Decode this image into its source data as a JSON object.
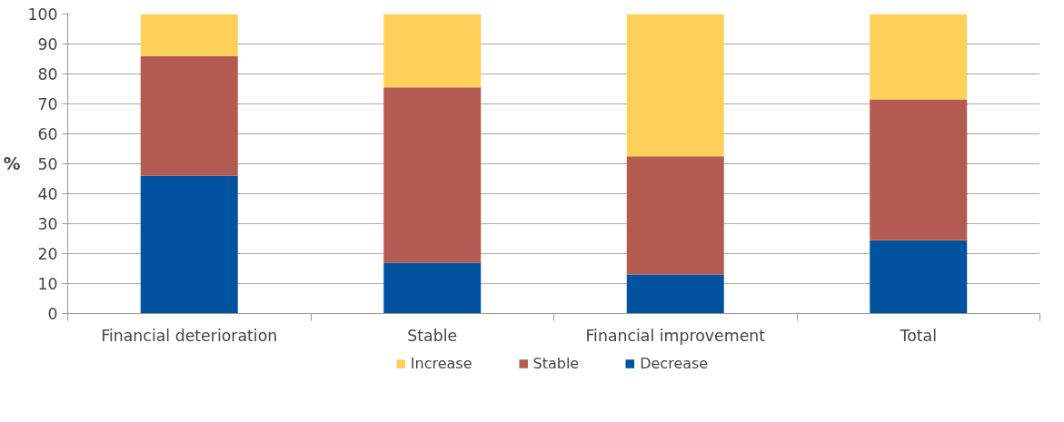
{
  "chart_data": {
    "type": "bar",
    "stacked": true,
    "ylabel": "%",
    "categories": [
      "Financial deterioration",
      "Stable",
      "Financial improvement",
      "Total"
    ],
    "series": [
      {
        "name": "Decrease",
        "color": "#00519e",
        "values": [
          46,
          17,
          13,
          24.5
        ]
      },
      {
        "name": "Stable",
        "color": "#b35b51",
        "values": [
          40,
          58.5,
          39.5,
          47
        ]
      },
      {
        "name": "Increase",
        "color": "#fdd05a",
        "values": [
          14,
          24.5,
          47.5,
          28.5
        ]
      }
    ],
    "ylim": [
      0,
      100
    ],
    "yticks": [
      0,
      10,
      20,
      30,
      40,
      50,
      60,
      70,
      80,
      90,
      100
    ],
    "grid": "y",
    "legend": "bottom"
  }
}
